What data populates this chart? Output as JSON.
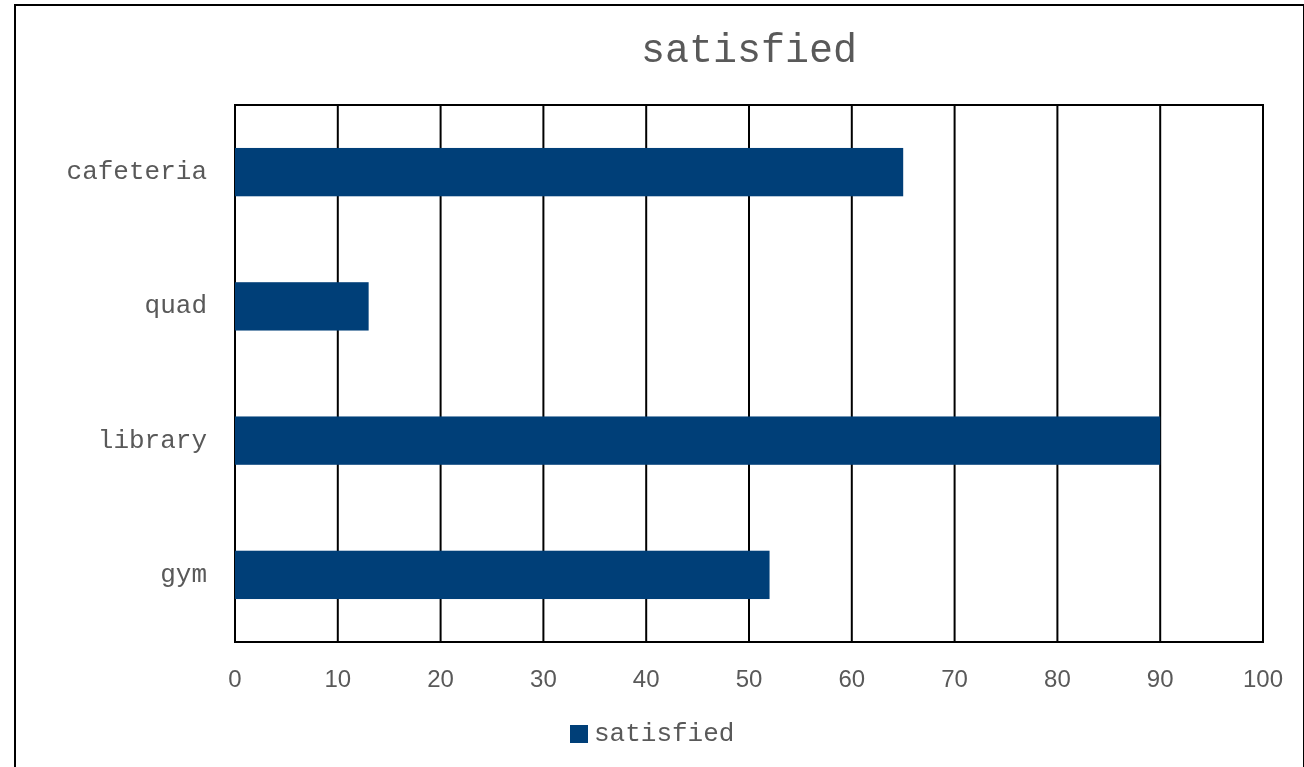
{
  "chart_data": {
    "type": "bar",
    "orientation": "horizontal",
    "title": "satisfied",
    "categories": [
      "cafeteria",
      "quad",
      "library",
      "gym"
    ],
    "series": [
      {
        "name": "satisfied",
        "color": "#003f78",
        "values": [
          65,
          13,
          90,
          52
        ]
      }
    ],
    "xlim": [
      0,
      100
    ],
    "xticks": [
      0,
      10,
      20,
      30,
      40,
      50,
      60,
      70,
      80,
      90,
      100
    ],
    "grid": "x",
    "legend": "bottom"
  }
}
